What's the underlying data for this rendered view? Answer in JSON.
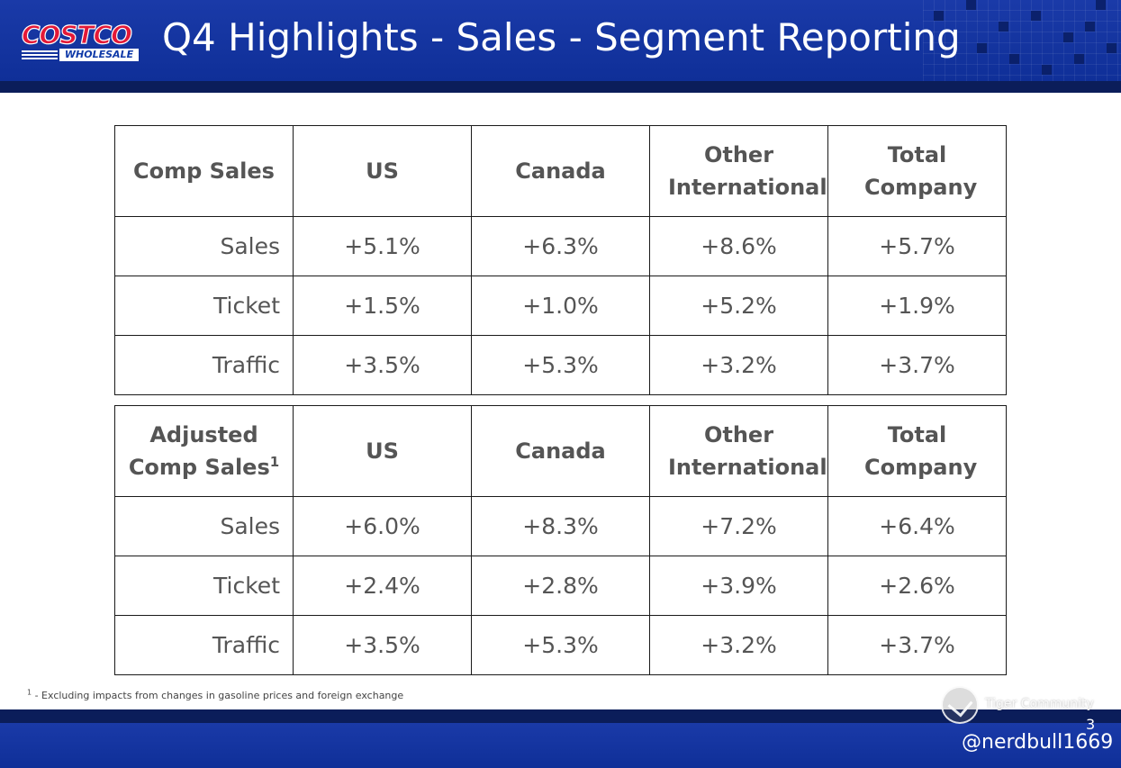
{
  "header": {
    "logo_text": "COSTCO",
    "logo_subtext": "WHOLESALE",
    "title": "Q4 Highlights - Sales - Segment Reporting"
  },
  "table_comp": {
    "header": [
      "Comp Sales",
      "US",
      "Canada",
      "Other International",
      "Total Company"
    ],
    "rows": [
      {
        "label": "Sales",
        "values": [
          "+5.1%",
          "+6.3%",
          "+8.6%",
          "+5.7%"
        ]
      },
      {
        "label": "Ticket",
        "values": [
          "+1.5%",
          "+1.0%",
          "+5.2%",
          "+1.9%"
        ]
      },
      {
        "label": "Traffic",
        "values": [
          "+3.5%",
          "+5.3%",
          "+3.2%",
          "+3.7%"
        ]
      }
    ]
  },
  "table_adjusted": {
    "header_label_line1": "Adjusted",
    "header_label_line2": "Comp Sales",
    "header_label_sup": "1",
    "header": [
      "US",
      "Canada",
      "Other International",
      "Total Company"
    ],
    "rows": [
      {
        "label": "Sales",
        "values": [
          "+6.0%",
          "+8.3%",
          "+7.2%",
          "+6.4%"
        ]
      },
      {
        "label": "Ticket",
        "values": [
          "+2.4%",
          "+2.8%",
          "+3.9%",
          "+2.6%"
        ]
      },
      {
        "label": "Traffic",
        "values": [
          "+3.5%",
          "+5.3%",
          "+3.2%",
          "+3.7%"
        ]
      }
    ]
  },
  "footer": {
    "footnote_marker": "1",
    "footnote": " - Excluding impacts from changes in gasoline prices and foreign exchange",
    "watermark": "Tiger Community",
    "page_number": "3",
    "handle": "@nerdbull1669"
  },
  "colors": {
    "header_blue": "#1a3aa8",
    "dark_navy": "#0b1d5a",
    "logo_red": "#e31837"
  }
}
